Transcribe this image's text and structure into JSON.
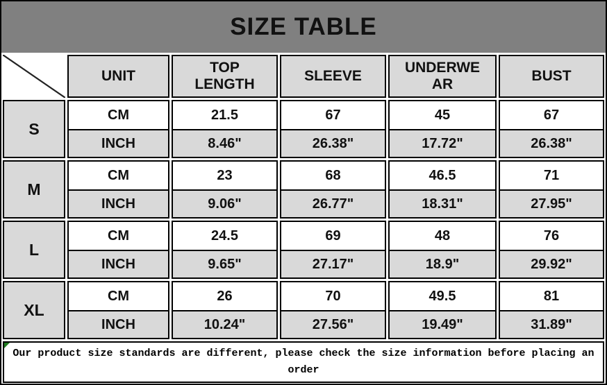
{
  "title": "SIZE TABLE",
  "colors": {
    "title_bg": "#808080",
    "cell_gray": "#d9d9d9",
    "border": "#000000",
    "marker_green": "#1f7a1f"
  },
  "header": {
    "columns": [
      "UNIT",
      "TOP LENGTH",
      "SLEEVE",
      "UNDERWEAR",
      "BUST"
    ]
  },
  "sizes": [
    {
      "label": "S",
      "rows": [
        {
          "unit": "CM",
          "values": [
            "21.5",
            "67",
            "45",
            "67"
          ]
        },
        {
          "unit": "INCH",
          "values": [
            "8.46\"",
            "26.38\"",
            "17.72\"",
            "26.38\""
          ]
        }
      ]
    },
    {
      "label": "M",
      "rows": [
        {
          "unit": "CM",
          "values": [
            "23",
            "68",
            "46.5",
            "71"
          ]
        },
        {
          "unit": "INCH",
          "values": [
            "9.06\"",
            "26.77\"",
            "18.31\"",
            "27.95\""
          ]
        }
      ]
    },
    {
      "label": "L",
      "rows": [
        {
          "unit": "CM",
          "values": [
            "24.5",
            "69",
            "48",
            "76"
          ]
        },
        {
          "unit": "INCH",
          "values": [
            "9.65\"",
            "27.17\"",
            "18.9\"",
            "29.92\""
          ]
        }
      ]
    },
    {
      "label": "XL",
      "rows": [
        {
          "unit": "CM",
          "values": [
            "26",
            "70",
            "49.5",
            "81"
          ]
        },
        {
          "unit": "INCH",
          "values": [
            "10.24\"",
            "27.56\"",
            "19.49\"",
            "31.89\""
          ]
        }
      ]
    }
  ],
  "footer_note": "Our product size standards are different, please check the size information before placing an order"
}
